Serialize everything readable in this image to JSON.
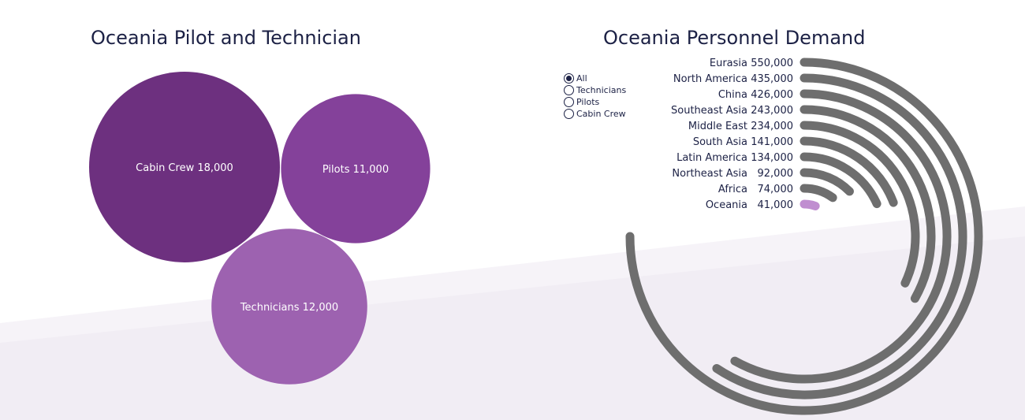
{
  "colors": {
    "bubble_dark": "#6d307f",
    "bubble_mid": "#84419a",
    "bubble_light": "#9d62b0",
    "arc_gray": "#6e6e6e",
    "arc_highlight": "#c08ed0",
    "title_text": "#1c2145",
    "bg_band": "#f4f1f7"
  },
  "left_panel": {
    "title": "Oceania Pilot and Technician"
  },
  "right_panel": {
    "title": "Oceania Personnel Demand",
    "filter": {
      "options": [
        "All",
        "Technicians",
        "Pilots",
        "Cabin Crew"
      ],
      "selected": "All"
    }
  },
  "chart_data": [
    {
      "type": "bubble",
      "title": "Oceania Pilot and Technician",
      "items": [
        {
          "label": "Cabin Crew",
          "value": 18000,
          "display": "Cabin Crew 18,000",
          "color": "#6d307f"
        },
        {
          "label": "Pilots",
          "value": 11000,
          "display": "Pilots 11,000",
          "color": "#84419a"
        },
        {
          "label": "Technicians",
          "value": 12000,
          "display": "Technicians 12,000",
          "color": "#9d62b0"
        }
      ]
    },
    {
      "type": "radial_bar",
      "title": "Oceania Personnel Demand",
      "max": 550000,
      "highlight": "Oceania",
      "categories": [
        "Eurasia",
        "North America",
        "China",
        "Southeast Asia",
        "Middle East",
        "South Asia",
        "Latin America",
        "Northeast Asia",
        "Africa",
        "Oceania"
      ],
      "values": [
        550000,
        435000,
        426000,
        243000,
        234000,
        141000,
        134000,
        92000,
        74000,
        41000
      ],
      "value_labels": [
        "550,000",
        "435,000",
        "426,000",
        "243,000",
        "234,000",
        "141,000",
        "134,000",
        "92,000",
        "74,000",
        "41,000"
      ]
    }
  ]
}
